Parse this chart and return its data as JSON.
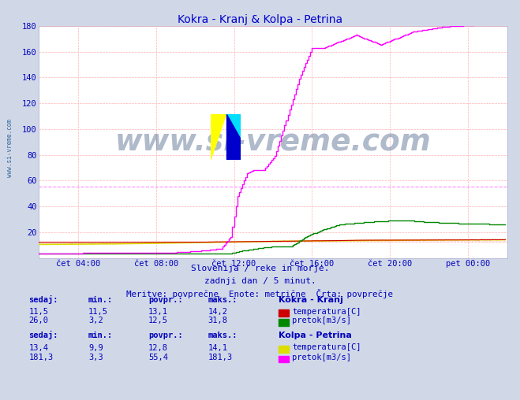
{
  "title": "Kokra - Kranj & Kolpa - Petrina",
  "title_color": "#0000cc",
  "bg_color": "#d0d8e8",
  "plot_bg_color": "#ffffff",
  "grid_color": "#ffaaaa",
  "xlim": [
    0,
    288
  ],
  "ylim": [
    0,
    180
  ],
  "yticks": [
    20,
    40,
    60,
    80,
    100,
    120,
    140,
    160,
    180
  ],
  "xtick_positions": [
    24,
    72,
    120,
    168,
    216,
    264
  ],
  "xtick_labels": [
    "čet 04:00",
    "čet 08:00",
    "čet 12:00",
    "čet 16:00",
    "čet 20:00",
    "pet 00:00"
  ],
  "subtitle1": "Slovenija / reke in morje.",
  "subtitle2": "zadnji dan / 5 minut.",
  "subtitle3": "Meritve: povprečne  Enote: metrične  Črta: povprečje",
  "watermark": "www.si-vreme.com",
  "watermark_color": "#1a3a6a",
  "kokra_temp_color": "#cc0000",
  "kokra_flow_color": "#008800",
  "kolpa_temp_color": "#dddd00",
  "kolpa_flow_color": "#ff00ff",
  "kokra_avg_line_color": "#ff0000",
  "kolpa_avg_line_color": "#ff88ff",
  "text_color": "#0000bb",
  "sidebar_color": "#336699",
  "n_points": 288,
  "kolpa_flow_avg": 55.4,
  "kokra_flow_avg": 12.5,
  "kokra_temp_avg": 13.1,
  "kolpa_temp_avg": 12.8
}
